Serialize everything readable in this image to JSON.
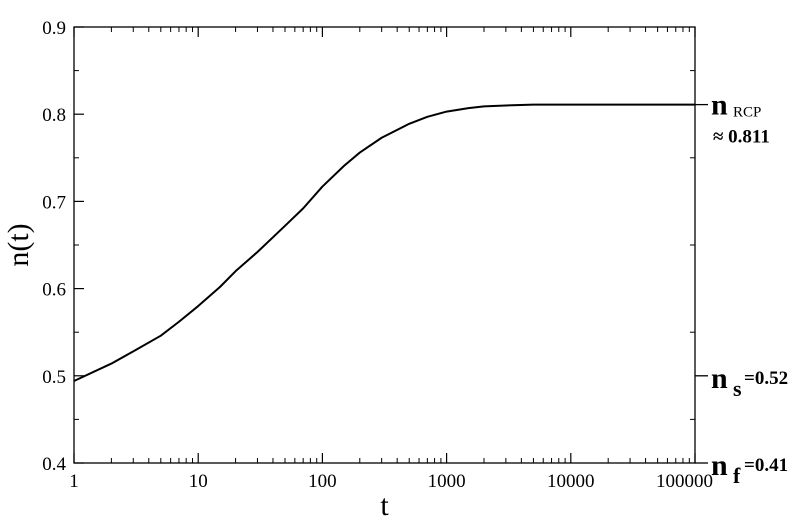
{
  "chart_data": {
    "type": "line",
    "title": "",
    "xlabel": "t",
    "ylabel": "n(t)",
    "xscale": "log",
    "xlim": [
      1,
      100000
    ],
    "ylim": [
      0.4,
      0.9
    ],
    "grid": false,
    "legend": "none",
    "x_ticks": [
      "1",
      "10",
      "100",
      "1000",
      "10000",
      "100000"
    ],
    "y_ticks": [
      "0.4",
      "0.5",
      "0.6",
      "0.7",
      "0.8",
      "0.9"
    ],
    "series": [
      {
        "x": [
          1,
          2,
          3,
          5,
          7,
          10,
          15,
          20,
          30,
          50,
          70,
          100,
          150,
          200,
          300,
          500,
          700,
          1000,
          1500,
          2000,
          3000,
          5000,
          10000,
          30000,
          100000
        ],
        "y": [
          0.494,
          0.514,
          0.528,
          0.546,
          0.562,
          0.58,
          0.602,
          0.62,
          0.642,
          0.672,
          0.692,
          0.717,
          0.741,
          0.756,
          0.773,
          0.789,
          0.797,
          0.803,
          0.807,
          0.809,
          0.81,
          0.811,
          0.811,
          0.811,
          0.811
        ],
        "color": "#000000"
      }
    ],
    "annotations": [
      {
        "main": "n",
        "sub": "RCP",
        "value": "≈ 0.811",
        "y": 0.811
      },
      {
        "main": "n",
        "sub": "s",
        "value": "=0.52",
        "y": 0.5
      },
      {
        "main": "n",
        "sub": "f",
        "value": "=0.41",
        "y": 0.4
      }
    ]
  }
}
